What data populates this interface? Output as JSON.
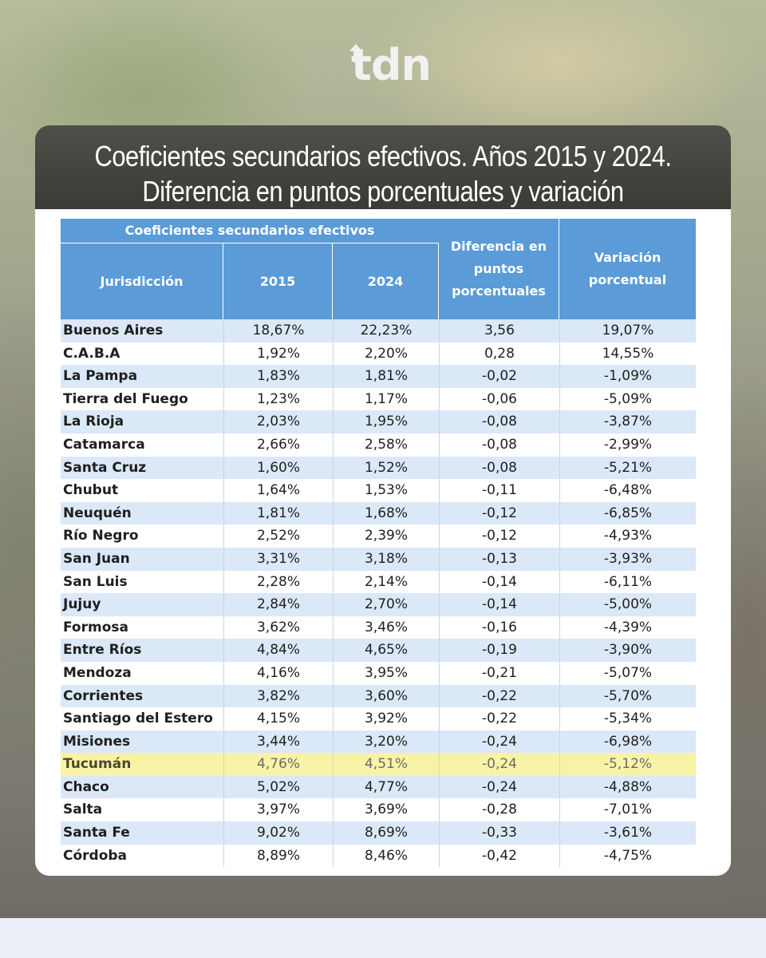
{
  "brand": {
    "logo_text": "tdn"
  },
  "title": {
    "line1": "Coeficientes secundarios efectivos. Años 2015 y 2024.",
    "line2": "Diferencia en puntos porcentuales y variación porcentual"
  },
  "table": {
    "group_header": "Coeficientes secundarios efectivos",
    "columns": {
      "jurisdiccion": "Jurisdicción",
      "y2015": "2015",
      "y2024": "2024",
      "diferencia": [
        "Diferencia en",
        "puntos",
        "porcentuales"
      ],
      "variacion": [
        "Variación",
        "porcentual"
      ]
    },
    "highlight_color": "#f8f3a6",
    "header_color": "#5a9bd8",
    "rows": [
      {
        "name": "Buenos Aires",
        "y2015": "18,67%",
        "y2024": "22,23%",
        "dif": "3,56",
        "var": "19,07%"
      },
      {
        "name": "C.A.B.A",
        "y2015": "1,92%",
        "y2024": "2,20%",
        "dif": "0,28",
        "var": "14,55%"
      },
      {
        "name": "La Pampa",
        "y2015": "1,83%",
        "y2024": "1,81%",
        "dif": "-0,02",
        "var": "-1,09%"
      },
      {
        "name": "Tierra del Fuego",
        "y2015": "1,23%",
        "y2024": "1,17%",
        "dif": "-0,06",
        "var": "-5,09%"
      },
      {
        "name": "La Rioja",
        "y2015": "2,03%",
        "y2024": "1,95%",
        "dif": "-0,08",
        "var": "-3,87%"
      },
      {
        "name": "Catamarca",
        "y2015": "2,66%",
        "y2024": "2,58%",
        "dif": "-0,08",
        "var": "-2,99%"
      },
      {
        "name": "Santa Cruz",
        "y2015": "1,60%",
        "y2024": "1,52%",
        "dif": "-0,08",
        "var": "-5,21%"
      },
      {
        "name": "Chubut",
        "y2015": "1,64%",
        "y2024": "1,53%",
        "dif": "-0,11",
        "var": "-6,48%"
      },
      {
        "name": "Neuquén",
        "y2015": "1,81%",
        "y2024": "1,68%",
        "dif": "-0,12",
        "var": "-6,85%"
      },
      {
        "name": "Río Negro",
        "y2015": "2,52%",
        "y2024": "2,39%",
        "dif": "-0,12",
        "var": "-4,93%"
      },
      {
        "name": "San Juan",
        "y2015": "3,31%",
        "y2024": "3,18%",
        "dif": "-0,13",
        "var": "-3,93%"
      },
      {
        "name": "San Luis",
        "y2015": "2,28%",
        "y2024": "2,14%",
        "dif": "-0,14",
        "var": "-6,11%"
      },
      {
        "name": "Jujuy",
        "y2015": "2,84%",
        "y2024": "2,70%",
        "dif": "-0,14",
        "var": "-5,00%"
      },
      {
        "name": "Formosa",
        "y2015": "3,62%",
        "y2024": "3,46%",
        "dif": "-0,16",
        "var": "-4,39%"
      },
      {
        "name": "Entre Ríos",
        "y2015": "4,84%",
        "y2024": "4,65%",
        "dif": "-0,19",
        "var": "-3,90%"
      },
      {
        "name": "Mendoza",
        "y2015": "4,16%",
        "y2024": "3,95%",
        "dif": "-0,21",
        "var": "-5,07%"
      },
      {
        "name": "Corrientes",
        "y2015": "3,82%",
        "y2024": "3,60%",
        "dif": "-0,22",
        "var": "-5,70%"
      },
      {
        "name": "Santiago del Estero",
        "y2015": "4,15%",
        "y2024": "3,92%",
        "dif": "-0,22",
        "var": "-5,34%"
      },
      {
        "name": "Misiones",
        "y2015": "3,44%",
        "y2024": "3,20%",
        "dif": "-0,24",
        "var": "-6,98%"
      },
      {
        "name": "Tucumán",
        "y2015": "4,76%",
        "y2024": "4,51%",
        "dif": "-0,24",
        "var": "-5,12%",
        "highlighted": true
      },
      {
        "name": "Chaco",
        "y2015": "5,02%",
        "y2024": "4,77%",
        "dif": "-0,24",
        "var": "-4,88%"
      },
      {
        "name": "Salta",
        "y2015": "3,97%",
        "y2024": "3,69%",
        "dif": "-0,28",
        "var": "-7,01%"
      },
      {
        "name": "Santa Fe",
        "y2015": "9,02%",
        "y2024": "8,69%",
        "dif": "-0,33",
        "var": "-3,61%"
      },
      {
        "name": "Córdoba",
        "y2015": "8,89%",
        "y2024": "8,46%",
        "dif": "-0,42",
        "var": "-4,75%"
      }
    ]
  }
}
